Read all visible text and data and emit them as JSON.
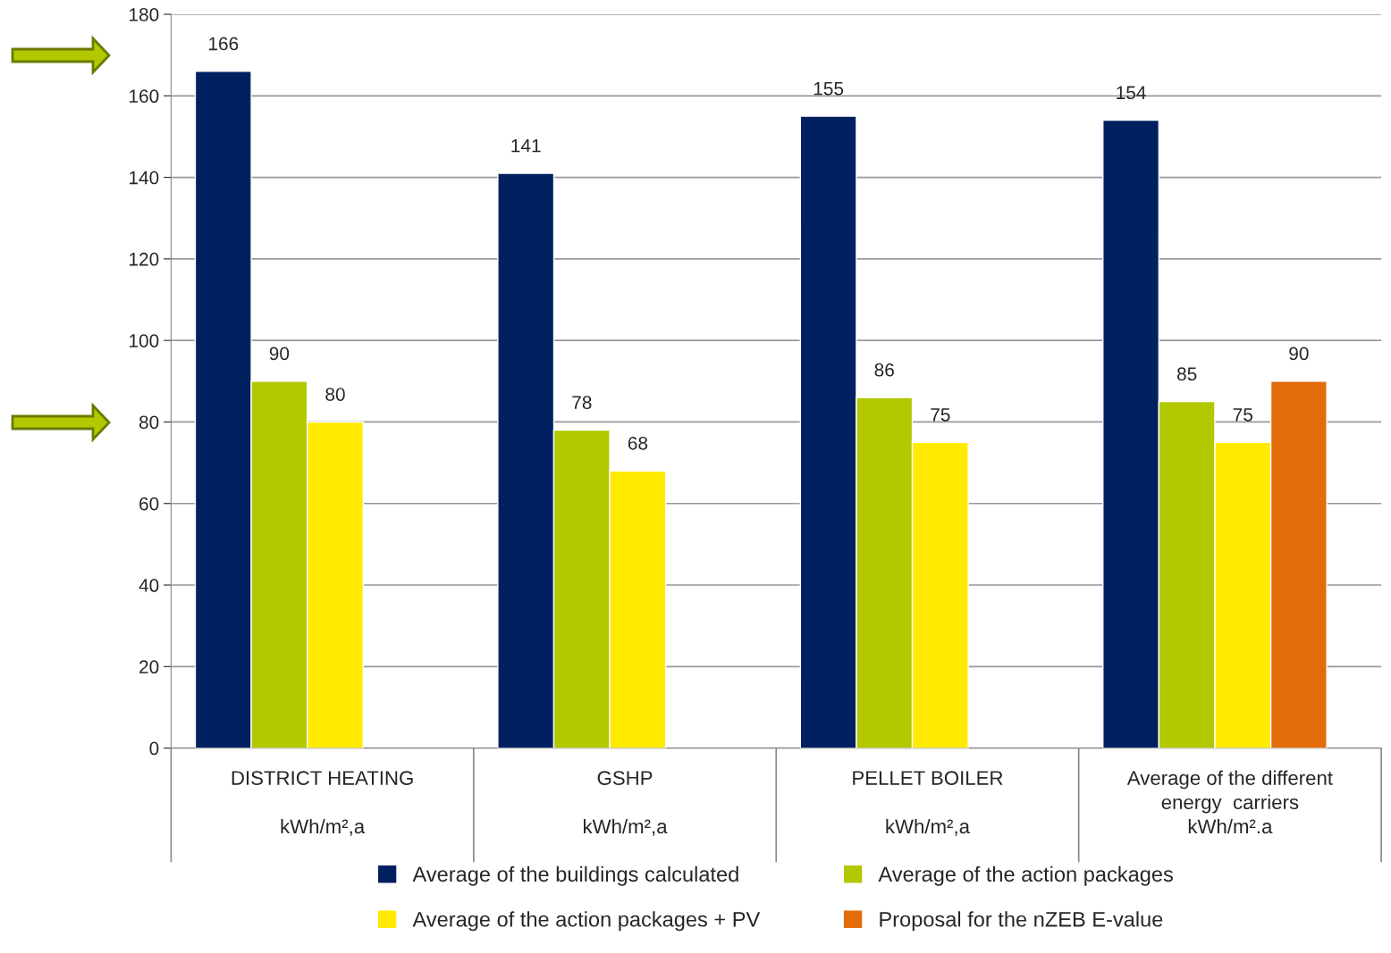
{
  "chart_data": {
    "type": "bar",
    "categories": [
      "DISTRICT HEATING\n\nkWh/m²,a",
      "GSHP\n\nkWh/m²,a",
      "PELLET BOILER\n\nkWh/m²,a",
      "Average of the different\nenergy  carriers\nkWh/m².a"
    ],
    "series": [
      {
        "name": "Average of the buildings calculated",
        "color": "#002060",
        "values": [
          166,
          141,
          155,
          154
        ]
      },
      {
        "name": "Average of the action packages",
        "color": "#b2c800",
        "values": [
          90,
          78,
          86,
          85
        ]
      },
      {
        "name": "Average of the action packages + PV",
        "color": "#ffea00",
        "values": [
          80,
          68,
          75,
          75
        ]
      },
      {
        "name": "Proposal for the nZEB E-value",
        "color": "#e36c0a",
        "values": [
          null,
          null,
          null,
          90
        ]
      }
    ],
    "ylim": [
      0,
      180
    ],
    "yticks": [
      0,
      20,
      40,
      60,
      80,
      100,
      120,
      140,
      160,
      180
    ],
    "grid": "y",
    "legend": "bottom",
    "data_labels": true
  }
}
